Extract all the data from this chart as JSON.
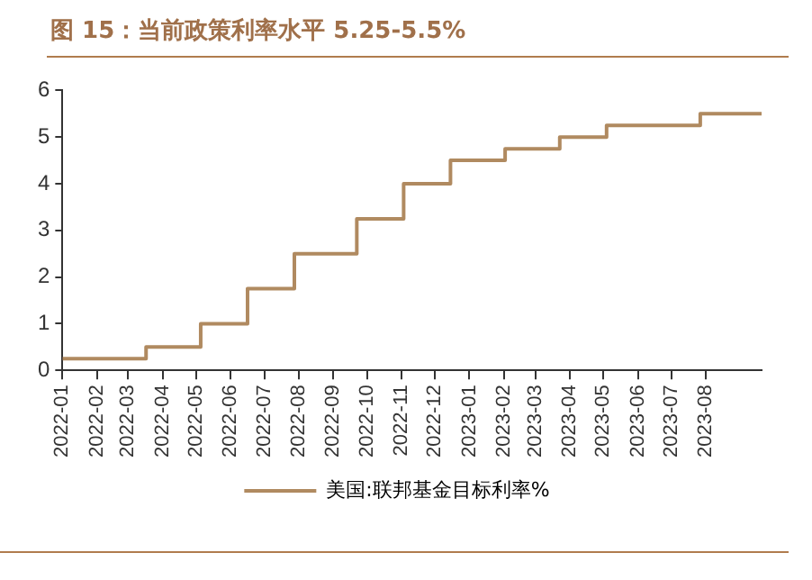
{
  "chart_data": {
    "type": "step",
    "title": "图 15：当前政策利率水平 5.25-5.5%",
    "x": [
      "2022-01-01",
      "2022-03-17",
      "2022-05-05",
      "2022-06-16",
      "2022-07-28",
      "2022-09-22",
      "2022-11-03",
      "2022-12-15",
      "2023-02-02",
      "2023-03-23",
      "2023-05-04",
      "2023-07-27",
      "2023-09-20"
    ],
    "series": [
      {
        "name": "美国:联邦基金目标利率%",
        "color": "#b08a60",
        "values": [
          0.25,
          0.5,
          1.0,
          1.75,
          2.5,
          3.25,
          4.0,
          4.5,
          4.75,
          5.0,
          5.25,
          5.5,
          5.5
        ]
      }
    ],
    "xlim": [
      "2022-01-01",
      "2023-09-20"
    ],
    "xticks": [
      {
        "value": "2022-01-01",
        "label": "2022-01"
      },
      {
        "value": "2022-02-01",
        "label": "2022-02"
      },
      {
        "value": "2022-03-01",
        "label": "2022-03"
      },
      {
        "value": "2022-04-01",
        "label": "2022-04"
      },
      {
        "value": "2022-05-01",
        "label": "2022-05"
      },
      {
        "value": "2022-06-01",
        "label": "2022-06"
      },
      {
        "value": "2022-07-01",
        "label": "2022-07"
      },
      {
        "value": "2022-08-01",
        "label": "2022-08"
      },
      {
        "value": "2022-09-01",
        "label": "2022-09"
      },
      {
        "value": "2022-10-01",
        "label": "2022-10"
      },
      {
        "value": "2022-11-01",
        "label": "2022-11"
      },
      {
        "value": "2022-12-01",
        "label": "2022-12"
      },
      {
        "value": "2023-01-01",
        "label": "2023-01"
      },
      {
        "value": "2023-02-01",
        "label": "2023-02"
      },
      {
        "value": "2023-03-01",
        "label": "2023-03"
      },
      {
        "value": "2023-04-01",
        "label": "2023-04"
      },
      {
        "value": "2023-05-01",
        "label": "2023-05"
      },
      {
        "value": "2023-06-01",
        "label": "2023-06"
      },
      {
        "value": "2023-07-01",
        "label": "2023-07"
      },
      {
        "value": "2023-08-01",
        "label": "2023-08"
      }
    ],
    "ylim": [
      0,
      6
    ],
    "yticks": [
      0,
      1,
      2,
      3,
      4,
      5,
      6
    ],
    "grid": false,
    "legend": "bottom",
    "marker": "none",
    "line_style": "solid"
  }
}
